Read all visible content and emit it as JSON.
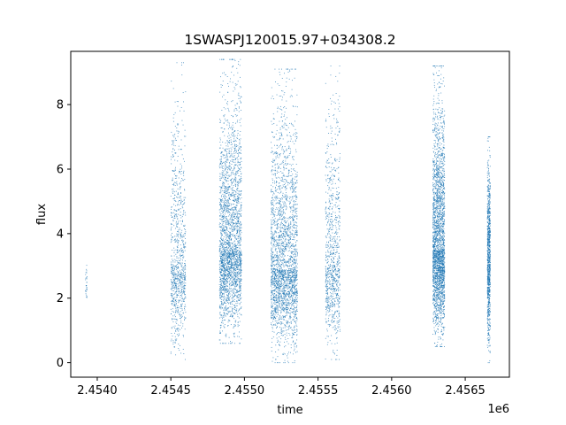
{
  "chart_data": {
    "type": "scatter",
    "title": "1SWASPJ120015.97+034308.2",
    "xlabel": "time",
    "ylabel": "flux",
    "x_offset_label": "1e6",
    "xlim": [
      2.45382,
      2.4568
    ],
    "ylim": [
      -0.45,
      9.65
    ],
    "x_ticks": [
      2.454,
      2.4545,
      2.455,
      2.4555,
      2.456,
      2.4565
    ],
    "x_tick_labels": [
      "2.4540",
      "2.4545",
      "2.4550",
      "2.4555",
      "2.4560",
      "2.4565"
    ],
    "y_ticks": [
      0,
      2,
      4,
      6,
      8
    ],
    "y_tick_labels": [
      "0",
      "2",
      "4",
      "6",
      "8"
    ],
    "grid": false,
    "legend": "none",
    "marker_color": "#1f77b4",
    "series": [
      {
        "clusters": [
          {
            "x_min": 2.45392,
            "x_max": 2.45393,
            "y_min": 1.8,
            "y_max": 3.2,
            "y_center": 2.5,
            "density": "sparse"
          },
          {
            "x_min": 2.4545,
            "x_max": 2.4546,
            "y_min": 0.1,
            "y_max": 9.3,
            "y_center": 3.0,
            "density": "moderate"
          },
          {
            "x_min": 2.45483,
            "x_max": 2.45498,
            "y_min": 0.6,
            "y_max": 9.4,
            "y_center": 3.5,
            "density": "dense"
          },
          {
            "x_min": 2.45518,
            "x_max": 2.45536,
            "y_min": 0.0,
            "y_max": 9.1,
            "y_center": 2.9,
            "density": "dense"
          },
          {
            "x_min": 2.45555,
            "x_max": 2.45565,
            "y_min": 0.1,
            "y_max": 9.2,
            "y_center": 3.0,
            "density": "moderate"
          },
          {
            "x_min": 2.45628,
            "x_max": 2.45636,
            "y_min": 0.5,
            "y_max": 9.2,
            "y_center": 3.5,
            "density": "dense"
          },
          {
            "x_min": 2.45665,
            "x_max": 2.45667,
            "y_min": 0.0,
            "y_max": 7.0,
            "y_center": 3.2,
            "density": "moderate"
          }
        ]
      }
    ]
  }
}
